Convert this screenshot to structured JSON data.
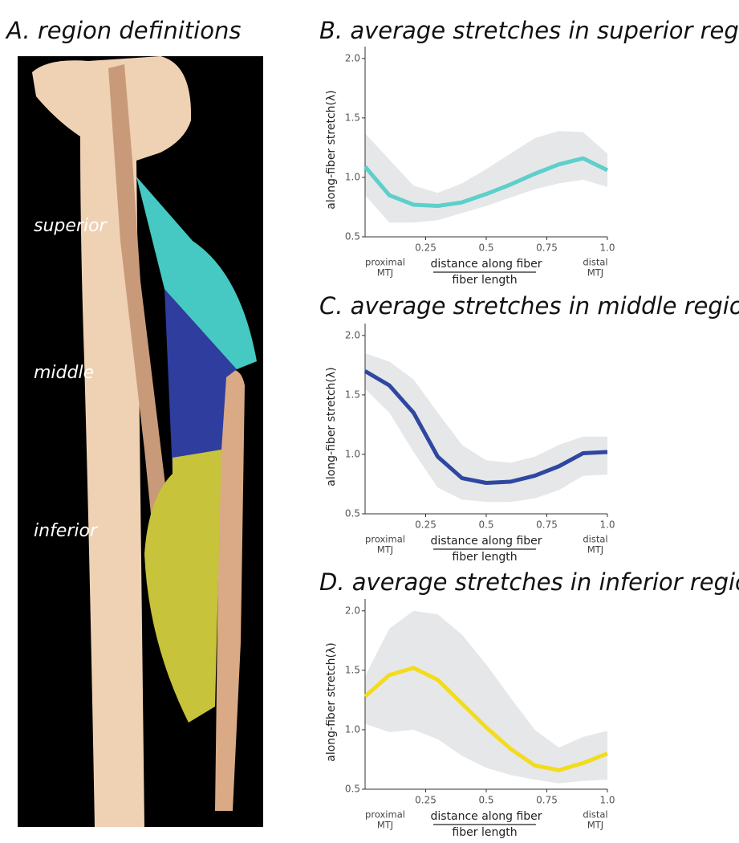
{
  "panel_a": {
    "title": "A. region definitions",
    "labels": [
      "superior",
      "middle",
      "inferior"
    ]
  },
  "chart_data": [
    {
      "type": "line",
      "title": "B. average stretches in superior region",
      "ylabel": "along-fiber stretch(λ)",
      "xlabel_numerator": "distance along fiber",
      "xlabel_denominator": "fiber length",
      "x_start_label": [
        "proximal",
        "MTJ"
      ],
      "x_end_label": [
        "distal",
        "MTJ"
      ],
      "x": [
        0,
        0.1,
        0.2,
        0.3,
        0.4,
        0.5,
        0.6,
        0.7,
        0.8,
        0.9,
        1.0
      ],
      "values": [
        1.09,
        0.85,
        0.77,
        0.76,
        0.79,
        0.86,
        0.94,
        1.03,
        1.11,
        1.16,
        1.06
      ],
      "band_upper": [
        1.37,
        1.15,
        0.93,
        0.87,
        0.95,
        1.07,
        1.2,
        1.33,
        1.39,
        1.38,
        1.2
      ],
      "band_lower": [
        0.85,
        0.62,
        0.62,
        0.64,
        0.7,
        0.76,
        0.83,
        0.9,
        0.95,
        0.98,
        0.92
      ],
      "color": "#5ecfcb",
      "band_color": "#e6e7e9",
      "xlim": [
        0,
        1
      ],
      "ylim": [
        0.5,
        2.1
      ],
      "xticks": [
        0.25,
        0.5,
        0.75,
        {
          "value": 1,
          "label": "1.0"
        }
      ],
      "yticks": [
        0.5,
        {
          "value": 1,
          "label": "1.0"
        },
        1.5,
        {
          "value": 2,
          "label": "2.0"
        }
      ]
    },
    {
      "type": "line",
      "title": "C. average stretches in middle region",
      "ylabel": "along-fiber stretch(λ)",
      "xlabel_numerator": "distance along fiber",
      "xlabel_denominator": "fiber length",
      "x_start_label": [
        "proximal",
        "MTJ"
      ],
      "x_end_label": [
        "distal",
        "MTJ"
      ],
      "x": [
        0,
        0.1,
        0.2,
        0.3,
        0.4,
        0.5,
        0.6,
        0.7,
        0.8,
        0.9,
        1.0
      ],
      "values": [
        1.7,
        1.58,
        1.35,
        0.98,
        0.8,
        0.76,
        0.77,
        0.82,
        0.9,
        1.01,
        1.02
      ],
      "band_upper": [
        1.85,
        1.78,
        1.63,
        1.35,
        1.08,
        0.95,
        0.93,
        0.98,
        1.08,
        1.15,
        1.15
      ],
      "band_lower": [
        1.55,
        1.35,
        1.02,
        0.72,
        0.62,
        0.6,
        0.6,
        0.63,
        0.7,
        0.82,
        0.83
      ],
      "color": "#2f47a0",
      "band_color": "#e6e7e9",
      "xlim": [
        0,
        1
      ],
      "ylim": [
        0.5,
        2.1
      ],
      "xticks": [
        0.25,
        0.5,
        0.75,
        {
          "value": 1,
          "label": "1.0"
        }
      ],
      "yticks": [
        0.5,
        {
          "value": 1,
          "label": "1.0"
        },
        1.5,
        {
          "value": 2,
          "label": "2.0"
        }
      ]
    },
    {
      "type": "line",
      "title": "D. average stretches in inferior region",
      "ylabel": "along-fiber stretch(λ)",
      "xlabel_numerator": "distance along fiber",
      "xlabel_denominator": "fiber length",
      "x_start_label": [
        "proximal",
        "MTJ"
      ],
      "x_end_label": [
        "distal",
        "MTJ"
      ],
      "x": [
        0,
        0.1,
        0.2,
        0.3,
        0.4,
        0.5,
        0.6,
        0.7,
        0.8,
        0.9,
        1.0
      ],
      "values": [
        1.28,
        1.46,
        1.52,
        1.42,
        1.22,
        1.02,
        0.84,
        0.7,
        0.66,
        0.72,
        0.8
      ],
      "band_upper": [
        1.45,
        1.85,
        2.0,
        1.97,
        1.8,
        1.55,
        1.27,
        1.0,
        0.85,
        0.94,
        0.99
      ],
      "band_lower": [
        1.05,
        0.98,
        1.0,
        0.92,
        0.78,
        0.68,
        0.62,
        0.58,
        0.55,
        0.57,
        0.58
      ],
      "color": "#f2dc1c",
      "band_color": "#e6e7e9",
      "xlim": [
        0,
        1
      ],
      "ylim": [
        0.5,
        2.1
      ],
      "xticks": [
        0.25,
        0.5,
        0.75,
        {
          "value": 1,
          "label": "1.0"
        }
      ],
      "yticks": [
        0.5,
        {
          "value": 1,
          "label": "1.0"
        },
        1.5,
        {
          "value": 2,
          "label": "2.0"
        }
      ]
    }
  ]
}
